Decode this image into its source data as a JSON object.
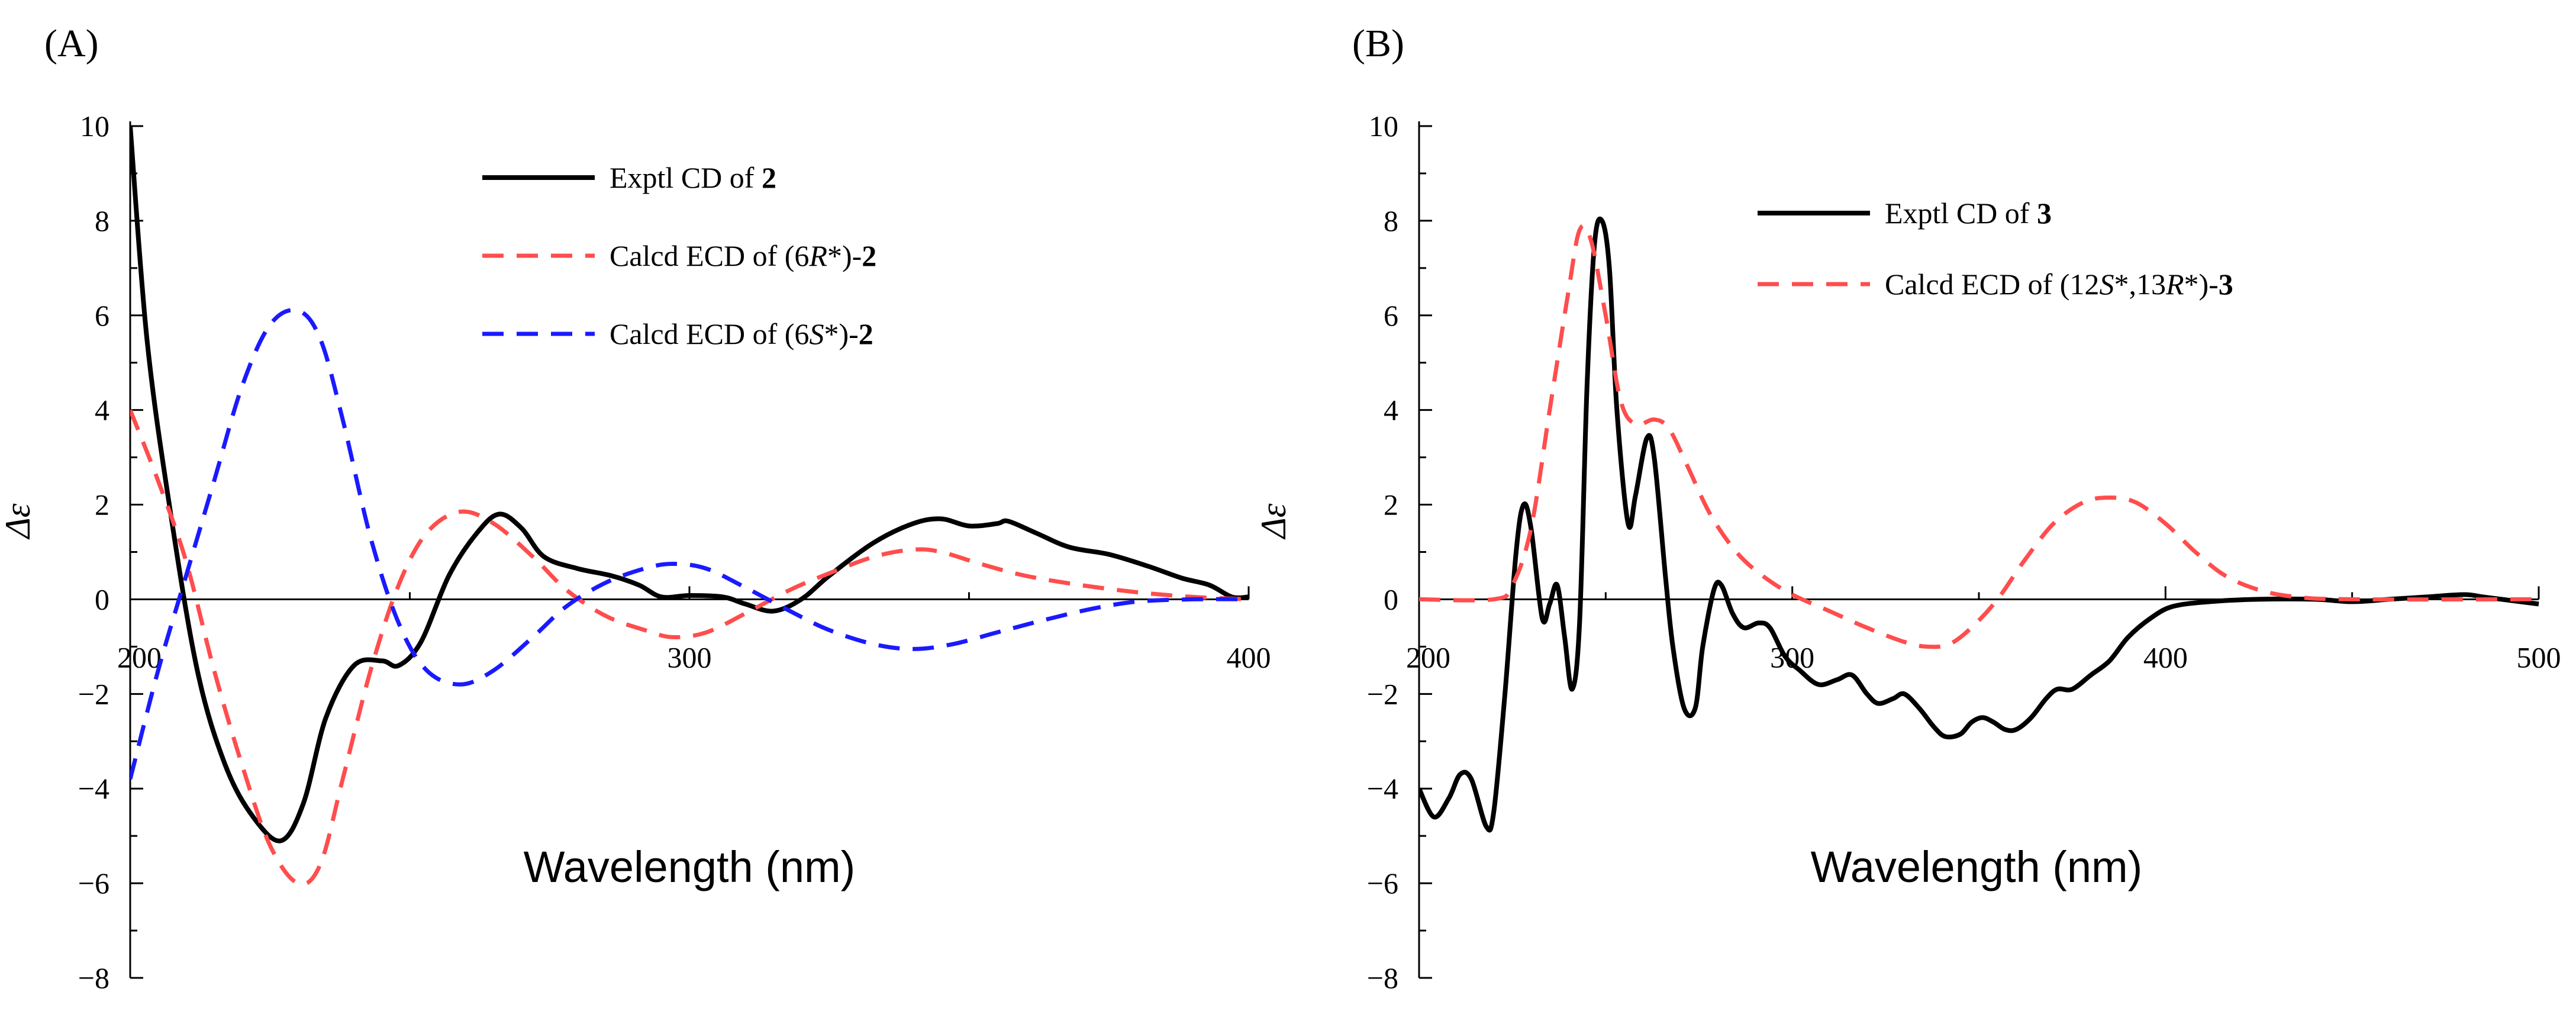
{
  "chart_data": [
    {
      "type": "line",
      "panel_label": "(A)",
      "xlabel": "Wavelength (nm)",
      "ylabel": "Δε",
      "xlim": [
        200,
        400
      ],
      "ylim": [
        -8,
        10
      ],
      "x_ticks": [
        "200",
        "300",
        "400"
      ],
      "y_ticks": [
        "10",
        "8",
        "6",
        "4",
        "2",
        "0",
        "−2",
        "−4",
        "−6",
        "−8"
      ],
      "grid": false,
      "legend_position": "top-right",
      "series": [
        {
          "legend_parts": [
            {
              "t": "Exptl CD of ",
              "b": false,
              "i": false
            },
            {
              "t": "2",
              "b": true,
              "i": false
            }
          ],
          "color": "#000000",
          "dash": "solid",
          "points": [
            [
              200,
              10
            ],
            [
              203,
              5.5
            ],
            [
              207,
              2.0
            ],
            [
              212,
              -1.5
            ],
            [
              217,
              -3.5
            ],
            [
              222,
              -4.6
            ],
            [
              227,
              -5.1
            ],
            [
              231,
              -4.3
            ],
            [
              235,
              -2.5
            ],
            [
              240,
              -1.4
            ],
            [
              245,
              -1.3
            ],
            [
              248,
              -1.4
            ],
            [
              252,
              -0.9
            ],
            [
              257,
              0.5
            ],
            [
              262,
              1.4
            ],
            [
              266,
              1.8
            ],
            [
              270,
              1.5
            ],
            [
              274,
              0.9
            ],
            [
              280,
              0.65
            ],
            [
              286,
              0.5
            ],
            [
              291,
              0.3
            ],
            [
              295,
              0.05
            ],
            [
              300,
              0.08
            ],
            [
              306,
              0.05
            ],
            [
              310,
              -0.1
            ],
            [
              315,
              -0.25
            ],
            [
              320,
              0.0
            ],
            [
              325,
              0.5
            ],
            [
              333,
              1.2
            ],
            [
              340,
              1.6
            ],
            [
              345,
              1.7
            ],
            [
              350,
              1.55
            ],
            [
              355,
              1.6
            ],
            [
              357,
              1.65
            ],
            [
              362,
              1.4
            ],
            [
              368,
              1.1
            ],
            [
              375,
              0.95
            ],
            [
              382,
              0.7
            ],
            [
              388,
              0.45
            ],
            [
              393,
              0.3
            ],
            [
              397,
              0.05
            ],
            [
              400,
              0.05
            ]
          ]
        },
        {
          "legend_parts": [
            {
              "t": "Calcd ECD of (6",
              "b": false,
              "i": false
            },
            {
              "t": "R",
              "b": false,
              "i": true
            },
            {
              "t": "*)-",
              "b": false,
              "i": false
            },
            {
              "t": "2",
              "b": true,
              "i": false
            }
          ],
          "color": "#ff4d4d",
          "dash": "dashed",
          "points": [
            [
              200,
              4.0
            ],
            [
              205,
              2.5
            ],
            [
              210,
              0.8
            ],
            [
              215,
              -1.5
            ],
            [
              220,
              -3.5
            ],
            [
              225,
              -5.2
            ],
            [
              230,
              -6.0
            ],
            [
              234,
              -5.6
            ],
            [
              238,
              -3.8
            ],
            [
              243,
              -1.5
            ],
            [
              248,
              0.3
            ],
            [
              253,
              1.4
            ],
            [
              259,
              1.85
            ],
            [
              265,
              1.6
            ],
            [
              272,
              0.9
            ],
            [
              278,
              0.2
            ],
            [
              285,
              -0.35
            ],
            [
              292,
              -0.65
            ],
            [
              297,
              -0.8
            ],
            [
              303,
              -0.7
            ],
            [
              310,
              -0.3
            ],
            [
              318,
              0.2
            ],
            [
              325,
              0.55
            ],
            [
              333,
              0.9
            ],
            [
              340,
              1.05
            ],
            [
              345,
              1.0
            ],
            [
              352,
              0.75
            ],
            [
              360,
              0.5
            ],
            [
              370,
              0.3
            ],
            [
              380,
              0.15
            ],
            [
              390,
              0.05
            ],
            [
              400,
              0.0
            ]
          ]
        },
        {
          "legend_parts": [
            {
              "t": "Calcd ECD of (6",
              "b": false,
              "i": false
            },
            {
              "t": "S",
              "b": false,
              "i": true
            },
            {
              "t": "*)-",
              "b": false,
              "i": false
            },
            {
              "t": "2",
              "b": true,
              "i": false
            }
          ],
          "color": "#1a1aff",
          "dash": "dashed",
          "points": [
            [
              200,
              -3.8
            ],
            [
              205,
              -1.5
            ],
            [
              210,
              0.5
            ],
            [
              215,
              2.5
            ],
            [
              220,
              4.5
            ],
            [
              225,
              5.8
            ],
            [
              230,
              6.1
            ],
            [
              234,
              5.5
            ],
            [
              238,
              3.8
            ],
            [
              243,
              1.3
            ],
            [
              248,
              -0.5
            ],
            [
              253,
              -1.5
            ],
            [
              259,
              -1.8
            ],
            [
              265,
              -1.5
            ],
            [
              272,
              -0.8
            ],
            [
              278,
              -0.15
            ],
            [
              285,
              0.35
            ],
            [
              292,
              0.65
            ],
            [
              297,
              0.75
            ],
            [
              303,
              0.65
            ],
            [
              310,
              0.25
            ],
            [
              318,
              -0.25
            ],
            [
              325,
              -0.65
            ],
            [
              333,
              -0.95
            ],
            [
              340,
              -1.05
            ],
            [
              347,
              -0.95
            ],
            [
              355,
              -0.7
            ],
            [
              363,
              -0.45
            ],
            [
              372,
              -0.2
            ],
            [
              380,
              -0.05
            ],
            [
              390,
              0.0
            ],
            [
              400,
              0.0
            ]
          ]
        }
      ]
    },
    {
      "type": "line",
      "panel_label": "(B)",
      "xlabel": "Wavelength (nm)",
      "ylabel": "Δε",
      "xlim": [
        200,
        500
      ],
      "ylim": [
        -8,
        10
      ],
      "x_ticks": [
        "200",
        "300",
        "400",
        "500"
      ],
      "y_ticks": [
        "10",
        "8",
        "6",
        "4",
        "2",
        "0",
        "−2",
        "−4",
        "−6",
        "−8"
      ],
      "grid": false,
      "legend_position": "top-right",
      "series": [
        {
          "legend_parts": [
            {
              "t": "Exptl CD of ",
              "b": false,
              "i": false
            },
            {
              "t": "3",
              "b": true,
              "i": false
            }
          ],
          "color": "#000000",
          "dash": "solid",
          "points": [
            [
              200,
              -4.0
            ],
            [
              204,
              -4.6
            ],
            [
              208,
              -4.2
            ],
            [
              211,
              -3.7
            ],
            [
              214,
              -3.8
            ],
            [
              218,
              -4.8
            ],
            [
              220,
              -4.5
            ],
            [
              223,
              -2.0
            ],
            [
              226,
              1.0
            ],
            [
              228,
              2.0
            ],
            [
              230,
              1.5
            ],
            [
              233,
              -0.4
            ],
            [
              235,
              -0.1
            ],
            [
              237,
              0.3
            ],
            [
              239,
              -0.8
            ],
            [
              241,
              -1.9
            ],
            [
              243,
              -0.5
            ],
            [
              245,
              4.5
            ],
            [
              247,
              7.5
            ],
            [
              249,
              8.0
            ],
            [
              251,
              7.0
            ],
            [
              253,
              4.0
            ],
            [
              256,
              1.6
            ],
            [
              258,
              2.2
            ],
            [
              261,
              3.4
            ],
            [
              263,
              3.0
            ],
            [
              266,
              0.5
            ],
            [
              268,
              -1.0
            ],
            [
              271,
              -2.3
            ],
            [
              274,
              -2.3
            ],
            [
              276,
              -1.0
            ],
            [
              279,
              0.2
            ],
            [
              281,
              0.3
            ],
            [
              284,
              -0.3
            ],
            [
              287,
              -0.6
            ],
            [
              291,
              -0.5
            ],
            [
              294,
              -0.6
            ],
            [
              298,
              -1.2
            ],
            [
              302,
              -1.5
            ],
            [
              307,
              -1.8
            ],
            [
              312,
              -1.7
            ],
            [
              316,
              -1.6
            ],
            [
              320,
              -2.0
            ],
            [
              323,
              -2.2
            ],
            [
              327,
              -2.1
            ],
            [
              330,
              -2.0
            ],
            [
              334,
              -2.3
            ],
            [
              338,
              -2.7
            ],
            [
              341,
              -2.9
            ],
            [
              345,
              -2.85
            ],
            [
              348,
              -2.6
            ],
            [
              351,
              -2.5
            ],
            [
              354,
              -2.6
            ],
            [
              357,
              -2.75
            ],
            [
              360,
              -2.75
            ],
            [
              364,
              -2.5
            ],
            [
              368,
              -2.1
            ],
            [
              371,
              -1.9
            ],
            [
              375,
              -1.9
            ],
            [
              380,
              -1.6
            ],
            [
              385,
              -1.3
            ],
            [
              390,
              -0.8
            ],
            [
              396,
              -0.4
            ],
            [
              402,
              -0.15
            ],
            [
              412,
              -0.05
            ],
            [
              425,
              0.0
            ],
            [
              440,
              0.0
            ],
            [
              450,
              -0.05
            ],
            [
              460,
              0.0
            ],
            [
              470,
              0.05
            ],
            [
              480,
              0.1
            ],
            [
              485,
              0.05
            ],
            [
              490,
              0.0
            ],
            [
              500,
              -0.1
            ]
          ]
        },
        {
          "legend_parts": [
            {
              "t": "Calcd ECD of (12",
              "b": false,
              "i": false
            },
            {
              "t": "S",
              "b": false,
              "i": true
            },
            {
              "t": "*,13",
              "b": false,
              "i": false
            },
            {
              "t": "R",
              "b": false,
              "i": true
            },
            {
              "t": "*)-",
              "b": false,
              "i": false
            },
            {
              "t": "3",
              "b": true,
              "i": false
            }
          ],
          "color": "#ff4d4d",
          "dash": "dashed",
          "points": [
            [
              200,
              0.0
            ],
            [
              220,
              0.0
            ],
            [
              225,
              0.3
            ],
            [
              230,
              1.5
            ],
            [
              235,
              4.0
            ],
            [
              240,
              6.5
            ],
            [
              243,
              7.8
            ],
            [
              246,
              7.6
            ],
            [
              250,
              6.0
            ],
            [
              254,
              4.2
            ],
            [
              258,
              3.7
            ],
            [
              263,
              3.8
            ],
            [
              267,
              3.6
            ],
            [
              272,
              2.8
            ],
            [
              278,
              1.8
            ],
            [
              285,
              1.0
            ],
            [
              292,
              0.5
            ],
            [
              300,
              0.1
            ],
            [
              310,
              -0.25
            ],
            [
              320,
              -0.6
            ],
            [
              330,
              -0.9
            ],
            [
              336,
              -1.0
            ],
            [
              342,
              -0.95
            ],
            [
              348,
              -0.6
            ],
            [
              355,
              0.0
            ],
            [
              362,
              0.8
            ],
            [
              370,
              1.6
            ],
            [
              378,
              2.05
            ],
            [
              385,
              2.15
            ],
            [
              392,
              2.05
            ],
            [
              400,
              1.6
            ],
            [
              408,
              1.0
            ],
            [
              416,
              0.5
            ],
            [
              425,
              0.2
            ],
            [
              435,
              0.05
            ],
            [
              450,
              0.0
            ],
            [
              500,
              0.0
            ]
          ]
        }
      ]
    }
  ]
}
